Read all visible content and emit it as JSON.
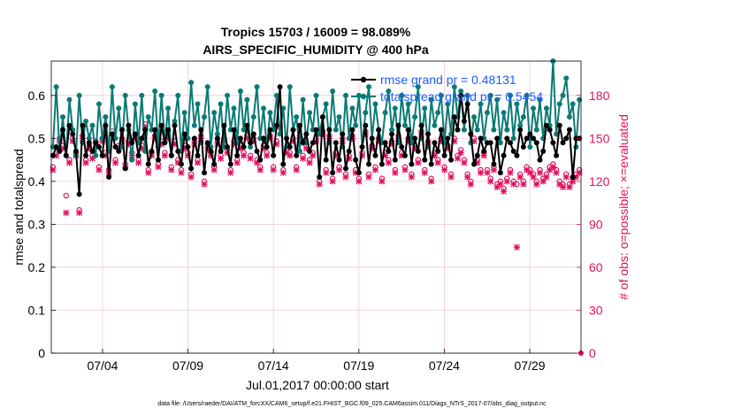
{
  "chart_data": {
    "type": "line",
    "title_line1": "Tropics 15703 / 16009 = 98.089%",
    "title_line2": "AIRS_SPECIFIC_HUMIDITY @ 400 hPa",
    "xlabel": "Jul.01,2017 00:00:00 start",
    "ylabel_left": "rmse and totalspread",
    "ylabel_right": "# of obs: o=possible; ×=evaluated",
    "x_ticks": [
      "07/04",
      "07/09",
      "07/14",
      "07/19",
      "07/24",
      "07/29"
    ],
    "x_tick_days": [
      4,
      9,
      14,
      19,
      24,
      29
    ],
    "xlim": [
      1,
      32
    ],
    "ylim_left": [
      0,
      0.68
    ],
    "y_ticks_left": [
      "0",
      "0.1",
      "0.2",
      "0.3",
      "0.4",
      "0.5",
      "0.6"
    ],
    "ylim_right": [
      0,
      204
    ],
    "y_ticks_right": [
      "0",
      "30",
      "60",
      "90",
      "120",
      "150",
      "180"
    ],
    "legend": [
      "rmse grand pr = 0.48131",
      "totalspread grand pr = 0.5454"
    ],
    "grid": true,
    "footer": "data file: /Users/raeder/DAI/ATM_forcXX/CAM6_setup/f.e21.FHIST_BGC.f09_025.CAM6assim.011/Diags_NTrS_2017-07/obs_diag_output.nc",
    "colors": {
      "rmse": "#000000",
      "spread": "#0b7a75",
      "obs": "#e0115f",
      "legend_text": "#1a5cff",
      "grid": "#f0c8d8"
    },
    "series": [
      {
        "name": "rmse",
        "values": [
          0.46,
          0.48,
          0.47,
          0.52,
          0.46,
          0.53,
          0.51,
          0.47,
          0.37,
          0.53,
          0.46,
          0.49,
          0.47,
          0.49,
          0.48,
          0.46,
          0.53,
          0.41,
          0.51,
          0.48,
          0.47,
          0.52,
          0.43,
          0.53,
          0.49,
          0.51,
          0.46,
          0.5,
          0.52,
          0.44,
          0.47,
          0.52,
          0.45,
          0.53,
          0.49,
          0.52,
          0.46,
          0.53,
          0.47,
          0.44,
          0.51,
          0.48,
          0.43,
          0.5,
          0.46,
          0.52,
          0.42,
          0.49,
          0.47,
          0.44,
          0.5,
          0.47,
          0.53,
          0.48,
          0.44,
          0.52,
          0.46,
          0.5,
          0.48,
          0.53,
          0.49,
          0.51,
          0.47,
          0.45,
          0.5,
          0.48,
          0.52,
          0.46,
          0.53,
          0.62,
          0.44,
          0.5,
          0.48,
          0.52,
          0.46,
          0.53,
          0.49,
          0.51,
          0.47,
          0.49,
          0.52,
          0.41,
          0.55,
          0.45,
          0.52,
          0.42,
          0.49,
          0.45,
          0.51,
          0.43,
          0.47,
          0.52,
          0.45,
          0.42,
          0.48,
          0.53,
          0.44,
          0.5,
          0.46,
          0.52,
          0.44,
          0.49,
          0.47,
          0.51,
          0.45,
          0.53,
          0.48,
          0.46,
          0.52,
          0.44,
          0.5,
          0.47,
          0.53,
          0.45,
          0.51,
          0.44,
          0.49,
          0.47,
          0.52,
          0.46,
          0.5,
          0.45,
          0.55,
          0.52,
          0.6,
          0.54,
          0.58,
          0.51,
          0.44,
          0.46,
          0.5,
          0.47,
          0.49,
          0.49,
          0.44,
          0.5,
          0.42,
          0.46,
          0.5,
          0.49,
          0.47,
          0.46,
          0.52,
          0.48,
          0.5,
          0.51,
          0.5,
          0.49,
          0.45,
          0.47,
          0.53,
          0.52,
          0.49,
          0.46,
          0.53,
          0.49,
          0.5,
          0.52,
          0.41,
          0.5,
          0.5
        ]
      },
      {
        "name": "totalspread",
        "values": [
          0.48,
          0.62,
          0.47,
          0.55,
          0.46,
          0.59,
          0.52,
          0.46,
          0.6,
          0.49,
          0.54,
          0.5,
          0.53,
          0.46,
          0.58,
          0.5,
          0.55,
          0.47,
          0.62,
          0.5,
          0.57,
          0.48,
          0.6,
          0.52,
          0.45,
          0.58,
          0.49,
          0.6,
          0.47,
          0.55,
          0.52,
          0.61,
          0.48,
          0.6,
          0.49,
          0.57,
          0.46,
          0.54,
          0.6,
          0.47,
          0.56,
          0.5,
          0.63,
          0.53,
          0.58,
          0.49,
          0.55,
          0.62,
          0.48,
          0.56,
          0.51,
          0.58,
          0.48,
          0.6,
          0.52,
          0.57,
          0.49,
          0.61,
          0.52,
          0.59,
          0.48,
          0.55,
          0.62,
          0.5,
          0.57,
          0.48,
          0.56,
          0.52,
          0.6,
          0.51,
          0.57,
          0.48,
          0.62,
          0.52,
          0.55,
          0.47,
          0.59,
          0.49,
          0.56,
          0.52,
          0.6,
          0.51,
          0.55,
          0.58,
          0.49,
          0.61,
          0.52,
          0.55,
          0.48,
          0.6,
          0.5,
          0.57,
          0.53,
          0.6,
          0.48,
          0.56,
          0.62,
          0.5,
          0.58,
          0.52,
          0.49,
          0.56,
          0.61,
          0.52,
          0.57,
          0.49,
          0.6,
          0.53,
          0.58,
          0.49,
          0.55,
          0.62,
          0.5,
          0.57,
          0.48,
          0.59,
          0.53,
          0.56,
          0.6,
          0.49,
          0.58,
          0.51,
          0.62,
          0.55,
          0.61,
          0.52,
          0.6,
          0.49,
          0.55,
          0.52,
          0.58,
          0.5,
          0.56,
          0.6,
          0.52,
          0.59,
          0.49,
          0.56,
          0.52,
          0.6,
          0.5,
          0.58,
          0.53,
          0.55,
          0.6,
          0.48,
          0.57,
          0.52,
          0.59,
          0.5,
          0.57,
          0.53,
          0.68,
          0.51,
          0.58,
          0.6,
          0.64,
          0.55,
          0.58,
          0.48,
          0.59
        ]
      },
      {
        "name": "obs_possible",
        "values": [
          130,
          140,
          150,
          145,
          110,
          135,
          150,
          140,
          100,
          152,
          135,
          145,
          138,
          148,
          130,
          150,
          140,
          128,
          155,
          135,
          145,
          150,
          132,
          148,
          140,
          152,
          135,
          145,
          160,
          128,
          140,
          152,
          132,
          148,
          140,
          152,
          130,
          148,
          135,
          128,
          145,
          140,
          125,
          148,
          135,
          152,
          120,
          145,
          140,
          130,
          148,
          138,
          150,
          142,
          128,
          148,
          135,
          145,
          140,
          152,
          138,
          150,
          135,
          130,
          145,
          140,
          152,
          130,
          148,
          160,
          128,
          142,
          140,
          150,
          130,
          152,
          138,
          145,
          135,
          140,
          150,
          120,
          155,
          128,
          152,
          122,
          140,
          130,
          150,
          125,
          138,
          152,
          128,
          122,
          140,
          155,
          125,
          145,
          130,
          150,
          122,
          140,
          135,
          148,
          128,
          152,
          140,
          130,
          150,
          125,
          145,
          135,
          155,
          128,
          148,
          122,
          140,
          135,
          150,
          130,
          145,
          125,
          150,
          138,
          142,
          135,
          125,
          120,
          150,
          135,
          128,
          140,
          128,
          122,
          130,
          118,
          120,
          115,
          122,
          128,
          120,
          118,
          125,
          120,
          130,
          128,
          125,
          120,
          128,
          122,
          125,
          130,
          132,
          128,
          120,
          118,
          125,
          118,
          122,
          125,
          128
        ]
      },
      {
        "name": "obs_evaluated",
        "values": [
          128,
          138,
          148,
          143,
          98,
          133,
          148,
          138,
          98,
          150,
          133,
          143,
          136,
          146,
          128,
          148,
          138,
          126,
          153,
          133,
          143,
          148,
          130,
          146,
          138,
          150,
          133,
          143,
          158,
          126,
          138,
          150,
          130,
          146,
          138,
          150,
          128,
          146,
          133,
          126,
          143,
          138,
          123,
          146,
          133,
          150,
          118,
          143,
          138,
          128,
          146,
          136,
          148,
          140,
          126,
          146,
          133,
          143,
          138,
          150,
          136,
          148,
          133,
          128,
          143,
          138,
          150,
          128,
          146,
          158,
          126,
          140,
          138,
          148,
          128,
          150,
          136,
          143,
          133,
          138,
          148,
          118,
          153,
          126,
          150,
          120,
          138,
          128,
          148,
          123,
          136,
          150,
          126,
          120,
          138,
          153,
          123,
          143,
          128,
          148,
          120,
          138,
          133,
          146,
          126,
          150,
          138,
          128,
          148,
          123,
          143,
          133,
          153,
          126,
          146,
          120,
          138,
          133,
          148,
          128,
          143,
          123,
          148,
          136,
          140,
          133,
          123,
          118,
          148,
          133,
          126,
          138,
          126,
          120,
          128,
          116,
          118,
          113,
          120,
          126,
          118,
          74,
          123,
          118,
          128,
          126,
          123,
          118,
          126,
          120,
          123,
          128,
          130,
          126,
          118,
          116,
          123,
          116,
          120,
          123,
          126
        ]
      }
    ]
  }
}
